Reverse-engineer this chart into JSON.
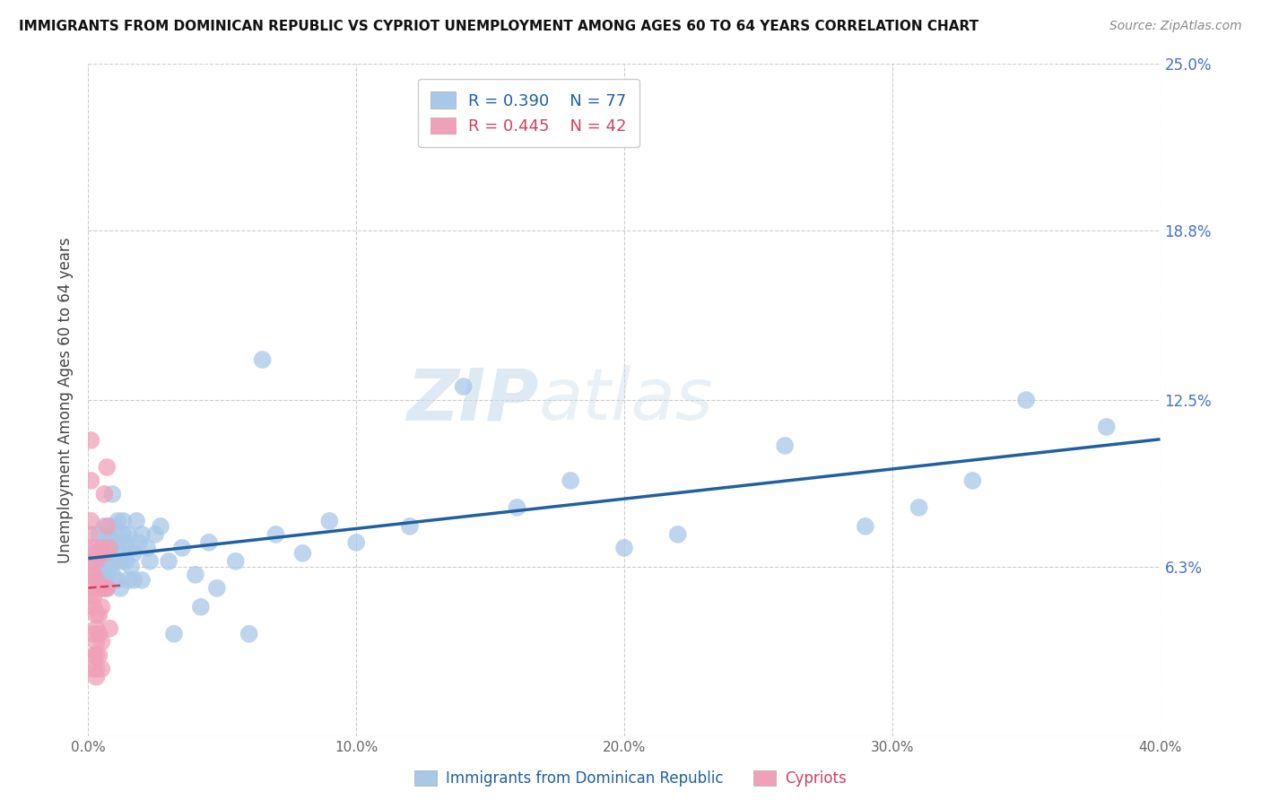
{
  "title": "IMMIGRANTS FROM DOMINICAN REPUBLIC VS CYPRIOT UNEMPLOYMENT AMONG AGES 60 TO 64 YEARS CORRELATION CHART",
  "source": "Source: ZipAtlas.com",
  "xlabel_blue": "Immigrants from Dominican Republic",
  "xlabel_pink": "Cypriots",
  "ylabel": "Unemployment Among Ages 60 to 64 years",
  "xlim": [
    0,
    0.4
  ],
  "ylim": [
    0,
    0.25
  ],
  "yticks": [
    0.063,
    0.125,
    0.188,
    0.25
  ],
  "ytick_labels": [
    "6.3%",
    "12.5%",
    "18.8%",
    "25.0%"
  ],
  "xticks": [
    0.0,
    0.1,
    0.2,
    0.3,
    0.4
  ],
  "xtick_labels": [
    "0.0%",
    "10.0%",
    "20.0%",
    "30.0%",
    "40.0%"
  ],
  "R_blue": 0.39,
  "N_blue": 77,
  "R_pink": 0.445,
  "N_pink": 42,
  "blue_color": "#A8C8E8",
  "pink_color": "#F0A0B8",
  "blue_line_color": "#2060A0",
  "pink_line_color": "#D04060",
  "watermark_zip": "ZIP",
  "watermark_atlas": "atlas",
  "blue_scatter_x": [
    0.002,
    0.003,
    0.003,
    0.004,
    0.004,
    0.004,
    0.005,
    0.005,
    0.005,
    0.005,
    0.006,
    0.006,
    0.006,
    0.006,
    0.007,
    0.007,
    0.007,
    0.007,
    0.008,
    0.008,
    0.008,
    0.009,
    0.009,
    0.009,
    0.01,
    0.01,
    0.01,
    0.011,
    0.011,
    0.011,
    0.012,
    0.012,
    0.013,
    0.013,
    0.013,
    0.014,
    0.014,
    0.015,
    0.015,
    0.016,
    0.016,
    0.017,
    0.017,
    0.018,
    0.019,
    0.02,
    0.02,
    0.022,
    0.023,
    0.025,
    0.027,
    0.03,
    0.032,
    0.035,
    0.04,
    0.042,
    0.045,
    0.048,
    0.055,
    0.06,
    0.065,
    0.07,
    0.08,
    0.09,
    0.1,
    0.12,
    0.14,
    0.16,
    0.18,
    0.2,
    0.22,
    0.26,
    0.29,
    0.31,
    0.33,
    0.35,
    0.38
  ],
  "blue_scatter_y": [
    0.065,
    0.06,
    0.07,
    0.058,
    0.068,
    0.075,
    0.062,
    0.058,
    0.07,
    0.063,
    0.055,
    0.065,
    0.072,
    0.078,
    0.06,
    0.07,
    0.075,
    0.055,
    0.063,
    0.068,
    0.078,
    0.06,
    0.073,
    0.09,
    0.065,
    0.072,
    0.078,
    0.058,
    0.07,
    0.08,
    0.055,
    0.065,
    0.068,
    0.075,
    0.08,
    0.065,
    0.072,
    0.058,
    0.075,
    0.063,
    0.07,
    0.058,
    0.068,
    0.08,
    0.072,
    0.075,
    0.058,
    0.07,
    0.065,
    0.075,
    0.078,
    0.065,
    0.038,
    0.07,
    0.06,
    0.048,
    0.072,
    0.055,
    0.065,
    0.038,
    0.14,
    0.075,
    0.068,
    0.08,
    0.072,
    0.078,
    0.13,
    0.085,
    0.095,
    0.07,
    0.075,
    0.108,
    0.078,
    0.085,
    0.095,
    0.125,
    0.115
  ],
  "pink_scatter_x": [
    0.0005,
    0.0005,
    0.001,
    0.001,
    0.001,
    0.001,
    0.001,
    0.0015,
    0.0015,
    0.002,
    0.002,
    0.002,
    0.002,
    0.002,
    0.002,
    0.002,
    0.003,
    0.003,
    0.003,
    0.003,
    0.003,
    0.003,
    0.003,
    0.003,
    0.004,
    0.004,
    0.004,
    0.004,
    0.004,
    0.005,
    0.005,
    0.005,
    0.005,
    0.005,
    0.006,
    0.006,
    0.006,
    0.007,
    0.007,
    0.007,
    0.008,
    0.008
  ],
  "pink_scatter_y": [
    0.06,
    0.075,
    0.05,
    0.065,
    0.08,
    0.095,
    0.11,
    0.055,
    0.07,
    0.048,
    0.06,
    0.068,
    0.038,
    0.052,
    0.03,
    0.025,
    0.045,
    0.058,
    0.065,
    0.04,
    0.035,
    0.03,
    0.025,
    0.022,
    0.055,
    0.068,
    0.045,
    0.038,
    0.03,
    0.07,
    0.055,
    0.048,
    0.035,
    0.025,
    0.09,
    0.068,
    0.055,
    0.1,
    0.078,
    0.055,
    0.07,
    0.04
  ]
}
